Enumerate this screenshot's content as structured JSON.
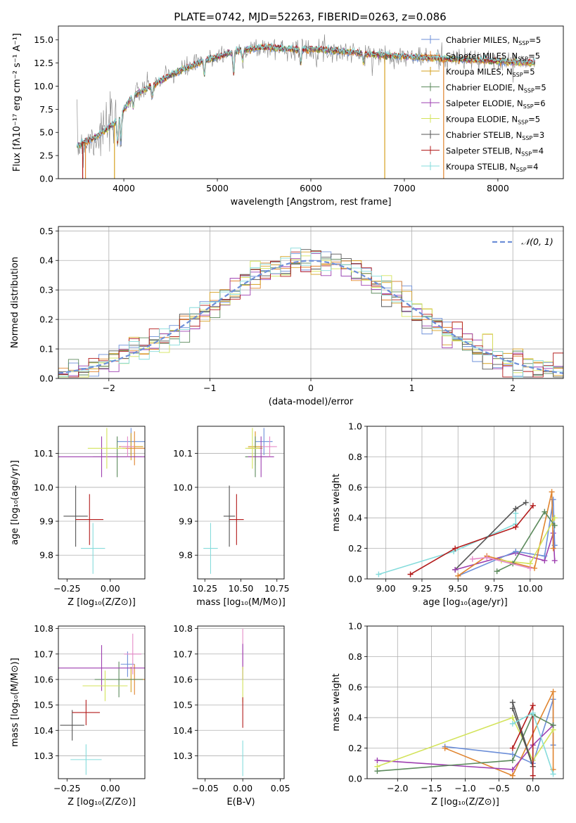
{
  "figure_title": "PLATE=0742, MJD=52263, FIBERID=0263, z=0.086",
  "colors": {
    "Chabrier MILES": "#6d8fd8",
    "Salpeter MILES": "#e0842e",
    "Kroupa MILES": "#d6a021",
    "Chabrier ELODIE": "#5c8a5c",
    "Salpeter ELODIE": "#9e3fb0",
    "Kroupa ELODIE": "#d3e35a",
    "Chabrier STELIB": "#555555",
    "Salpeter STELIB": "#b31b1b",
    "Kroupa STELIB": "#86dcdc",
    "extra": "#e58bc8"
  },
  "chart_data": [
    {
      "type": "line",
      "panel": "spectrum",
      "xlabel": "wavelength [Angstrom, rest frame]",
      "ylabel": "Flux [fλ10⁻¹⁷ erg cm⁻² s⁻¹ A⁻¹]",
      "xlim": [
        3300,
        8700
      ],
      "ylim": [
        0,
        16.5
      ],
      "xticks": [
        "4000",
        "5000",
        "6000",
        "7000",
        "8000"
      ],
      "yticks": [
        "0.0",
        "2.5",
        "5.0",
        "7.5",
        "10.0",
        "12.5",
        "15.0"
      ],
      "legend_position": "right",
      "legend": [
        {
          "name": "Chabrier MILES",
          "nssp": "5"
        },
        {
          "name": "Salpeter MILES",
          "nssp": "5"
        },
        {
          "name": "Kroupa MILES",
          "nssp": "5"
        },
        {
          "name": "Chabrier ELODIE",
          "nssp": "5"
        },
        {
          "name": "Salpeter ELODIE",
          "nssp": "6"
        },
        {
          "name": "Kroupa ELODIE",
          "nssp": "5"
        },
        {
          "name": "Chabrier STELIB",
          "nssp": "3"
        },
        {
          "name": "Salpeter STELIB",
          "nssp": "4"
        },
        {
          "name": "Kroupa STELIB",
          "nssp": "4"
        }
      ],
      "continuum": {
        "x": [
          3500,
          3700,
          3900,
          4000,
          4100,
          4300,
          4500,
          4800,
          5000,
          5200,
          5500,
          5800,
          6000,
          6300,
          6600,
          7000,
          7400,
          7800,
          8200,
          8400
        ],
        "y": [
          3.5,
          4.5,
          6.0,
          7.5,
          9.0,
          10.0,
          11.2,
          12.5,
          13.2,
          13.8,
          14.2,
          14.0,
          14.0,
          13.8,
          13.5,
          13.2,
          13.0,
          12.8,
          12.6,
          12.5
        ]
      }
    },
    {
      "type": "histogram",
      "panel": "residuals",
      "xlabel": "(data-model)/error",
      "ylabel": "Normed distribution",
      "xlim": [
        -2.5,
        2.5
      ],
      "ylim": [
        0,
        0.515
      ],
      "grid": true,
      "xticks": [
        "−2",
        "−1",
        "0",
        "1",
        "2"
      ],
      "yticks": [
        "0.0",
        "0.1",
        "0.2",
        "0.3",
        "0.4",
        "0.5"
      ],
      "legend_position": "top-right",
      "legend": "𝒩(0, 1)",
      "bin_width": 0.1,
      "bins_start": -2.5,
      "reference": {
        "type": "gaussian",
        "mean": 0,
        "sigma": 1
      }
    },
    {
      "type": "errorbar",
      "panel": "age-vs-Z",
      "xlabel": "Z [log₁₀(Z/Z⊙)]",
      "ylabel": "age  [log₁₀(age/yr)]",
      "xlim": [
        -0.3,
        0.2
      ],
      "ylim": [
        9.73,
        10.18
      ],
      "xticks": [
        "−0.25",
        "0.00"
      ],
      "yticks": [
        "9.8",
        "9.9",
        "10.0",
        "10.1"
      ],
      "points": [
        {
          "s": "Chabrier MILES",
          "x": 0.12,
          "xerr": 0.08,
          "y": 10.135,
          "yerr": 0.04
        },
        {
          "s": "Salpeter MILES",
          "x": 0.14,
          "xerr": 0.07,
          "y": 10.115,
          "yerr": 0.05
        },
        {
          "s": "Kroupa MILES",
          "x": 0.12,
          "xerr": 0.07,
          "y": 10.12,
          "yerr": 0.04
        },
        {
          "s": "Chabrier ELODIE",
          "x": 0.04,
          "xerr": 0.14,
          "y": 10.09,
          "yerr": 0.06
        },
        {
          "s": "Salpeter ELODIE",
          "x": -0.05,
          "xerr": 0.3,
          "y": 10.09,
          "yerr": 0.06
        },
        {
          "s": "Kroupa ELODIE",
          "x": -0.02,
          "xerr": 0.11,
          "y": 10.115,
          "yerr": 0.06
        },
        {
          "s": "Chabrier STELIB",
          "x": -0.2,
          "xerr": 0.07,
          "y": 9.915,
          "yerr": 0.09
        },
        {
          "s": "Salpeter STELIB",
          "x": -0.12,
          "xerr": 0.08,
          "y": 9.905,
          "yerr": 0.075
        },
        {
          "s": "Kroupa STELIB",
          "x": -0.1,
          "xerr": 0.07,
          "y": 9.82,
          "yerr": 0.075
        },
        {
          "s": "extra",
          "x": 0.1,
          "xerr": 0.04,
          "y": 10.12,
          "yerr": 0.03
        }
      ]
    },
    {
      "type": "errorbar",
      "panel": "age-vs-mass",
      "xlabel": "mass [log₁₀(M/M⊙)]",
      "ylabel": "",
      "xlim": [
        10.2,
        10.8
      ],
      "ylim": [
        9.73,
        10.18
      ],
      "xticks": [
        "10.25",
        "10.50",
        "10.75"
      ],
      "yticks": [
        "9.8",
        "9.9",
        "10.0",
        "10.1"
      ],
      "points": [
        {
          "s": "Chabrier MILES",
          "x": 10.66,
          "xerr": 0.06,
          "y": 10.135,
          "yerr": 0.04
        },
        {
          "s": "Salpeter MILES",
          "x": 10.6,
          "xerr": 0.05,
          "y": 10.115,
          "yerr": 0.05
        },
        {
          "s": "Kroupa MILES",
          "x": 10.6,
          "xerr": 0.05,
          "y": 10.12,
          "yerr": 0.04
        },
        {
          "s": "Chabrier ELODIE",
          "x": 10.6,
          "xerr": 0.07,
          "y": 10.09,
          "yerr": 0.06
        },
        {
          "s": "Salpeter ELODIE",
          "x": 10.64,
          "xerr": 0.09,
          "y": 10.09,
          "yerr": 0.06
        },
        {
          "s": "Kroupa ELODIE",
          "x": 10.58,
          "xerr": 0.05,
          "y": 10.115,
          "yerr": 0.06
        },
        {
          "s": "Chabrier STELIB",
          "x": 10.42,
          "xerr": 0.04,
          "y": 9.915,
          "yerr": 0.09
        },
        {
          "s": "Salpeter STELIB",
          "x": 10.47,
          "xerr": 0.05,
          "y": 9.905,
          "yerr": 0.075
        },
        {
          "s": "Kroupa STELIB",
          "x": 10.29,
          "xerr": 0.05,
          "y": 9.82,
          "yerr": 0.075
        },
        {
          "s": "extra",
          "x": 10.7,
          "xerr": 0.05,
          "y": 10.12,
          "yerr": 0.03
        }
      ]
    },
    {
      "type": "line",
      "panel": "mass-weight-vs-age",
      "xlabel": "age  [log₁₀(age/yr)]",
      "ylabel": "mass weight",
      "xlim": [
        8.87,
        10.23
      ],
      "ylim": [
        0,
        1
      ],
      "grid": true,
      "xticks": [
        "9.00",
        "9.25",
        "9.50",
        "9.75",
        "10.00"
      ],
      "yticks": [
        "0.0",
        "0.2",
        "0.4",
        "0.6",
        "0.8",
        "1.0"
      ],
      "series": [
        {
          "s": "Kroupa STELIB",
          "x": [
            8.95,
            9.47,
            9.9,
            9.9
          ],
          "y": [
            0.03,
            0.18,
            0.36,
            0.43
          ]
        },
        {
          "s": "Salpeter STELIB",
          "x": [
            9.17,
            9.48,
            9.9,
            10.02
          ],
          "y": [
            0.03,
            0.2,
            0.34,
            0.48
          ]
        },
        {
          "s": "Chabrier STELIB",
          "x": [
            9.48,
            9.9,
            9.97
          ],
          "y": [
            0.06,
            0.46,
            0.5
          ]
        },
        {
          "s": "Salpeter ELODIE",
          "x": [
            9.48,
            9.9,
            10.1,
            10.16,
            10.17
          ],
          "y": [
            0.06,
            0.17,
            0.12,
            0.3,
            0.12
          ]
        },
        {
          "s": "Chabrier MILES",
          "x": [
            9.5,
            9.9,
            10.1,
            10.16,
            10.17
          ],
          "y": [
            0.02,
            0.18,
            0.15,
            0.52,
            0.22
          ]
        },
        {
          "s": "Salpeter MILES",
          "x": [
            9.5,
            9.7,
            10.03,
            10.15,
            10.16
          ],
          "y": [
            0.02,
            0.15,
            0.07,
            0.57,
            0.2
          ]
        },
        {
          "s": "Kroupa ELODIE",
          "x": [
            9.8,
            10.0,
            10.17
          ],
          "y": [
            0.12,
            0.1,
            0.4
          ]
        },
        {
          "s": "Chabrier ELODIE",
          "x": [
            9.77,
            9.88,
            10.1,
            10.17
          ],
          "y": [
            0.05,
            0.1,
            0.44,
            0.35
          ]
        },
        {
          "s": "extra",
          "x": [
            9.6,
            9.7,
            10.0
          ],
          "y": [
            0.13,
            0.14,
            0.07
          ]
        }
      ]
    },
    {
      "type": "errorbar",
      "panel": "mass-vs-Z",
      "xlabel": "Z [log₁₀(Z/Z⊙)]",
      "ylabel": "mass [log₁₀(M/M⊙)]",
      "xlim": [
        -0.3,
        0.2
      ],
      "ylim": [
        10.21,
        10.81
      ],
      "xticks": [
        "−0.25",
        "0.00"
      ],
      "yticks": [
        "10.3",
        "10.4",
        "10.5",
        "10.6",
        "10.7",
        "10.8"
      ],
      "points": [
        {
          "s": "Chabrier MILES",
          "x": 0.1,
          "xerr": 0.04,
          "y": 10.66,
          "yerr": 0.05
        },
        {
          "s": "Salpeter MILES",
          "x": 0.14,
          "xerr": 0.07,
          "y": 10.6,
          "yerr": 0.06
        },
        {
          "s": "Kroupa MILES",
          "x": 0.12,
          "xerr": 0.07,
          "y": 10.6,
          "yerr": 0.05
        },
        {
          "s": "Chabrier ELODIE",
          "x": 0.05,
          "xerr": 0.14,
          "y": 10.6,
          "yerr": 0.07
        },
        {
          "s": "Salpeter ELODIE",
          "x": -0.05,
          "xerr": 0.3,
          "y": 10.645,
          "yerr": 0.09
        },
        {
          "s": "Kroupa ELODIE",
          "x": -0.03,
          "xerr": 0.13,
          "y": 10.575,
          "yerr": 0.06
        },
        {
          "s": "Chabrier STELIB",
          "x": -0.22,
          "xerr": 0.07,
          "y": 10.42,
          "yerr": 0.06
        },
        {
          "s": "Salpeter STELIB",
          "x": -0.14,
          "xerr": 0.08,
          "y": 10.47,
          "yerr": 0.05
        },
        {
          "s": "Kroupa STELIB",
          "x": -0.14,
          "xerr": 0.09,
          "y": 10.285,
          "yerr": 0.06
        },
        {
          "s": "extra",
          "x": 0.13,
          "xerr": 0.05,
          "y": 10.7,
          "yerr": 0.08
        }
      ]
    },
    {
      "type": "errorbar",
      "panel": "mass-vs-ebv",
      "xlabel": "E(B-V)",
      "ylabel": "",
      "xlim": [
        -0.06,
        0.055
      ],
      "ylim": [
        10.21,
        10.81
      ],
      "xticks": [
        "−0.05",
        "0.00",
        "0.05"
      ],
      "yticks": [
        "10.3",
        "10.4",
        "10.5",
        "10.6",
        "10.7",
        "10.8"
      ],
      "points": [
        {
          "s": "extra",
          "x": 0,
          "xerr": 0,
          "y": 10.72,
          "yerr": 0.08
        },
        {
          "s": "Salpeter ELODIE",
          "x": 0,
          "xerr": 0,
          "y": 10.67,
          "yerr": 0.07
        },
        {
          "s": "Kroupa ELODIE",
          "x": 0,
          "xerr": 0,
          "y": 10.58,
          "yerr": 0.07
        },
        {
          "s": "Salpeter STELIB",
          "x": 0,
          "xerr": 0,
          "y": 10.47,
          "yerr": 0.06
        },
        {
          "s": "Kroupa STELIB",
          "x": 0,
          "xerr": 0,
          "y": 10.29,
          "yerr": 0.07
        }
      ]
    },
    {
      "type": "line",
      "panel": "mass-weight-vs-Z",
      "xlabel": "Z [log₁₀(Z/Z⊙)]",
      "ylabel": "mass weight",
      "xlim": [
        -2.45,
        0.45
      ],
      "ylim": [
        0,
        1
      ],
      "grid": true,
      "xticks": [
        "−2.0",
        "−1.5",
        "−1.0",
        "−0.5",
        "0.0"
      ],
      "yticks": [
        "0.0",
        "0.2",
        "0.4",
        "0.6",
        "0.8",
        "1.0"
      ],
      "series": [
        {
          "s": "Chabrier MILES",
          "x": [
            -1.3,
            -0.3,
            0.0,
            0.3,
            0.3
          ],
          "y": [
            0.21,
            0.16,
            0.1,
            0.52,
            0.22
          ]
        },
        {
          "s": "Salpeter MILES",
          "x": [
            -1.3,
            -0.3,
            0.3,
            0.3
          ],
          "y": [
            0.2,
            0.02,
            0.57,
            0.06
          ]
        },
        {
          "s": "Salpeter ELODIE",
          "x": [
            -2.3,
            -0.3,
            0.0,
            0.3
          ],
          "y": [
            0.12,
            0.06,
            0.22,
            0.35
          ]
        },
        {
          "s": "Kroupa ELODIE",
          "x": [
            -2.3,
            -0.3,
            0.0,
            0.3
          ],
          "y": [
            0.08,
            0.4,
            0.12,
            0.32
          ]
        },
        {
          "s": "Chabrier ELODIE",
          "x": [
            -2.3,
            -0.3,
            0.0,
            0.3
          ],
          "y": [
            0.05,
            0.12,
            0.42,
            0.35
          ]
        },
        {
          "s": "Chabrier STELIB",
          "x": [
            -0.3,
            0.0,
            -0.3
          ],
          "y": [
            0.5,
            0.08,
            0.46
          ]
        },
        {
          "s": "Salpeter STELIB",
          "x": [
            -0.3,
            0.0,
            0.0
          ],
          "y": [
            0.2,
            0.48,
            0.02
          ]
        },
        {
          "s": "Kroupa STELIB",
          "x": [
            -0.3,
            0.0,
            0.3
          ],
          "y": [
            0.36,
            0.43,
            0.03
          ]
        }
      ]
    }
  ]
}
